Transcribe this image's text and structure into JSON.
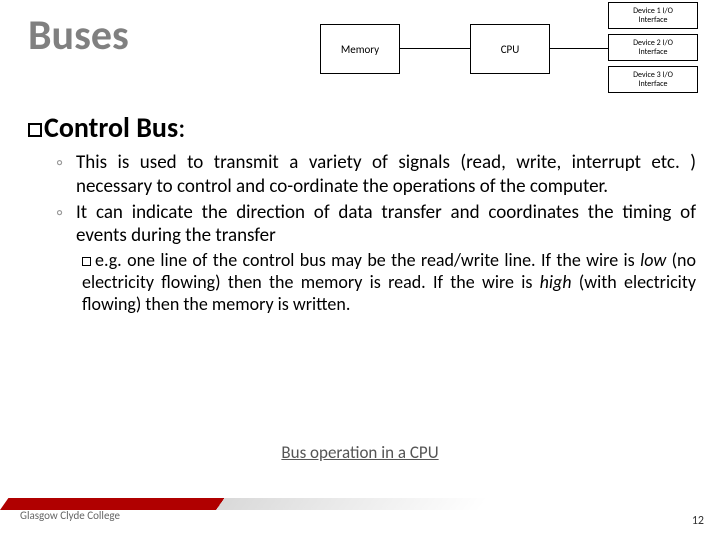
{
  "title": "Buses",
  "diagram": {
    "memory": "Memory",
    "cpu": "CPU",
    "io1_l1": "Device 1 I/O",
    "io1_l2": "Interface",
    "io2_l1": "Device 2 I/O",
    "io2_l2": "Interface",
    "io3_l1": "Device 3 I/O",
    "io3_l2": "Interface"
  },
  "heading": {
    "term": "Control Bus",
    "colon": ":"
  },
  "bullets": {
    "b1": "This is used to transmit a variety of signals (read, write, interrupt etc. ) necessary to control and co-ordinate the operations of the computer.",
    "b2": "It can indicate the direction of data transfer and coordinates the timing of events during the transfer",
    "sub_pre": "e.g. one line of the control bus may be the read/write line. If the wire is ",
    "sub_low": "low",
    "sub_mid1": " (no electricity flowing) then the memory is read. If the wire is ",
    "sub_high": "high",
    "sub_mid2": " (with electricity flowing) then the memory is written."
  },
  "link": "Bus operation in a CPU",
  "footer": "Glasgow Clyde College",
  "pagenum": "12"
}
